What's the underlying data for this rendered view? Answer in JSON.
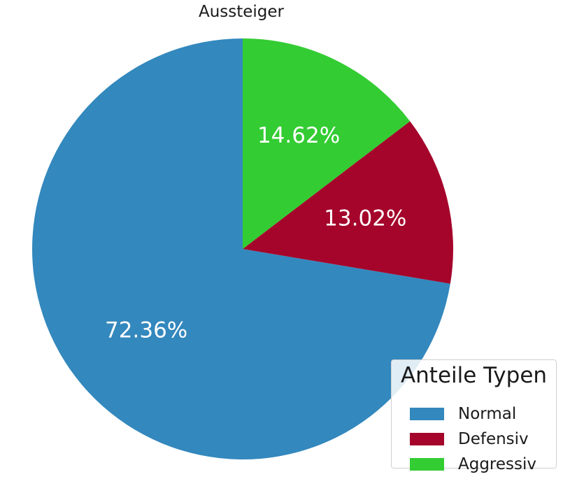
{
  "chart_data": {
    "type": "pie",
    "title": "Aussteiger",
    "slices": [
      {
        "label": "Normal",
        "value": 72.36,
        "display": "72.36%",
        "color": "#3388bd"
      },
      {
        "label": "Defensiv",
        "value": 13.02,
        "display": "13.02%",
        "color": "#a5052b"
      },
      {
        "label": "Aggressiv",
        "value": 14.62,
        "display": "14.62%",
        "color": "#33cc33"
      }
    ],
    "legend": {
      "title": "Anteile Typen",
      "position": "bottom-right",
      "entries": [
        "Normal",
        "Defensiv",
        "Aggressiv"
      ]
    }
  }
}
